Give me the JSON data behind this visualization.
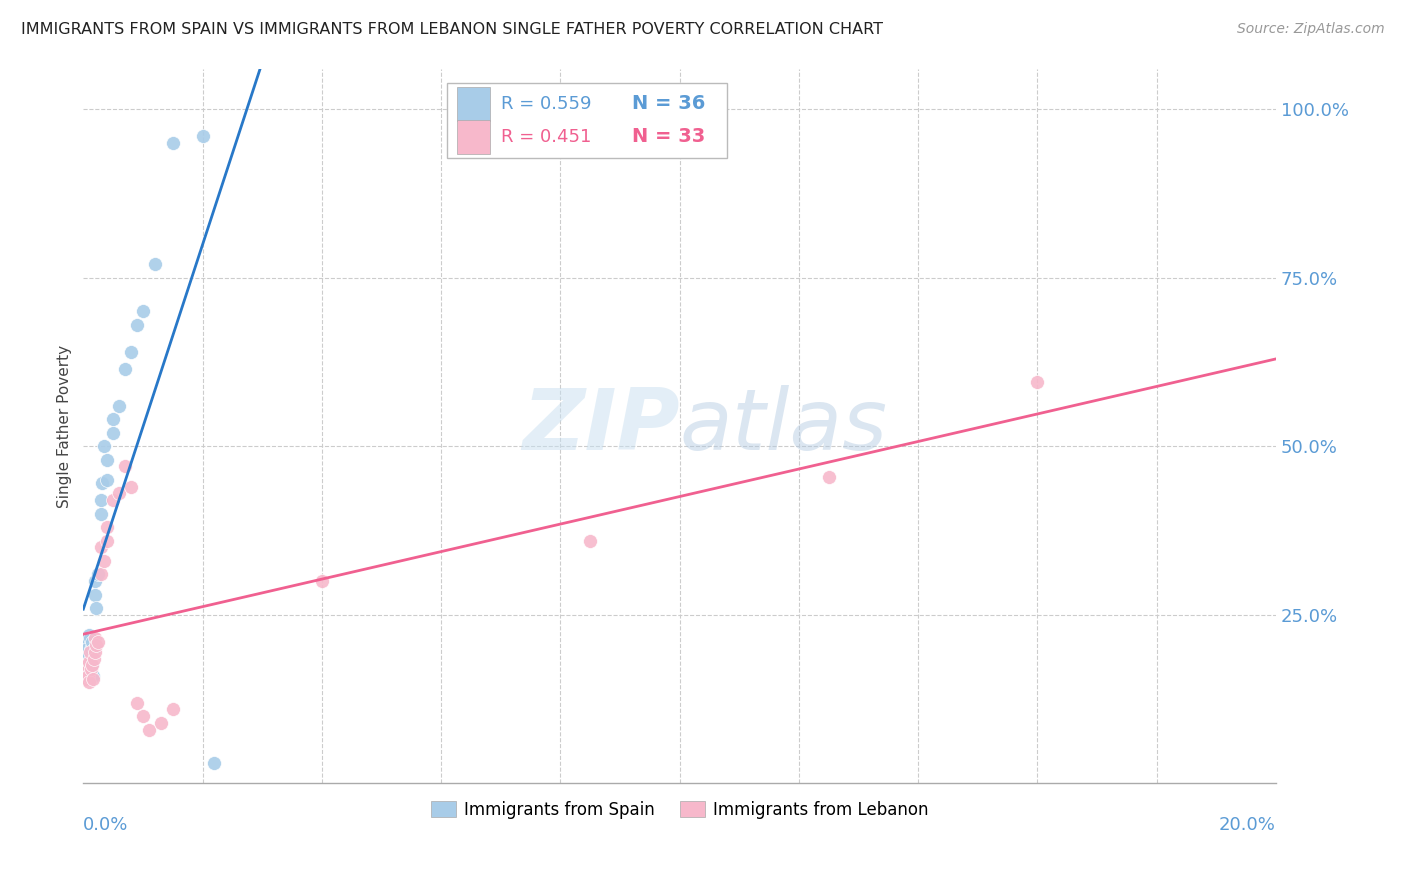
{
  "title": "IMMIGRANTS FROM SPAIN VS IMMIGRANTS FROM LEBANON SINGLE FATHER POVERTY CORRELATION CHART",
  "source": "Source: ZipAtlas.com",
  "ylabel": "Single Father Poverty",
  "legend1_label": "Immigrants from Spain",
  "legend2_label": "Immigrants from Lebanon",
  "R_spain": "0.559",
  "N_spain": "36",
  "R_lebanon": "0.451",
  "N_lebanon": "33",
  "color_spain": "#a8cce8",
  "color_lebanon": "#f7b8cb",
  "color_spain_line": "#2878c8",
  "color_lebanon_line": "#f06090",
  "watermark_zip": "ZIP",
  "watermark_atlas": "atlas",
  "spain_x": [
    0.0003,
    0.0004,
    0.0005,
    0.0006,
    0.0007,
    0.0008,
    0.0009,
    0.001,
    0.001,
    0.0012,
    0.0013,
    0.0014,
    0.0015,
    0.0016,
    0.0018,
    0.002,
    0.002,
    0.0022,
    0.0025,
    0.003,
    0.003,
    0.0032,
    0.0035,
    0.004,
    0.004,
    0.005,
    0.005,
    0.006,
    0.007,
    0.008,
    0.009,
    0.01,
    0.012,
    0.015,
    0.02,
    0.022
  ],
  "spain_y": [
    0.175,
    0.195,
    0.205,
    0.21,
    0.2,
    0.185,
    0.17,
    0.22,
    0.19,
    0.215,
    0.2,
    0.21,
    0.175,
    0.16,
    0.2,
    0.3,
    0.28,
    0.26,
    0.31,
    0.42,
    0.4,
    0.445,
    0.5,
    0.45,
    0.48,
    0.52,
    0.54,
    0.56,
    0.615,
    0.64,
    0.68,
    0.7,
    0.77,
    0.95,
    0.96,
    0.03
  ],
  "lebanon_x": [
    0.0003,
    0.0005,
    0.0007,
    0.0008,
    0.001,
    0.001,
    0.0012,
    0.0013,
    0.0015,
    0.0016,
    0.0018,
    0.002,
    0.002,
    0.0022,
    0.0025,
    0.003,
    0.003,
    0.0035,
    0.004,
    0.004,
    0.005,
    0.006,
    0.007,
    0.008,
    0.009,
    0.01,
    0.011,
    0.013,
    0.015,
    0.04,
    0.085,
    0.125,
    0.16
  ],
  "lebanon_y": [
    0.155,
    0.165,
    0.175,
    0.16,
    0.18,
    0.15,
    0.195,
    0.17,
    0.175,
    0.155,
    0.185,
    0.215,
    0.195,
    0.205,
    0.21,
    0.35,
    0.31,
    0.33,
    0.38,
    0.36,
    0.42,
    0.43,
    0.47,
    0.44,
    0.12,
    0.1,
    0.08,
    0.09,
    0.11,
    0.3,
    0.36,
    0.455,
    0.595
  ],
  "xmin": 0.0,
  "xmax": 0.2,
  "ymin": 0.0,
  "ymax": 1.06,
  "yticks": [
    0.25,
    0.5,
    0.75,
    1.0
  ],
  "ytick_labels": [
    "25.0%",
    "50.0%",
    "75.0%",
    "100.0%"
  ],
  "xtick_left_label": "0.0%",
  "xtick_right_label": "20.0%"
}
